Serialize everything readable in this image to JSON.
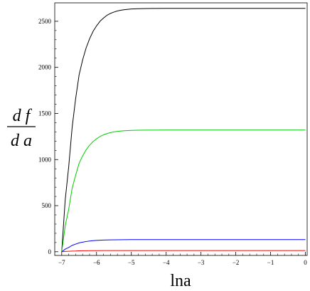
{
  "chart_data": {
    "type": "line",
    "title": "",
    "xlabel": "lna",
    "ylabel": {
      "numerator": "d f",
      "denominator": "d a"
    },
    "xlim": [
      -7.2,
      0.05
    ],
    "ylim": [
      -40,
      2700
    ],
    "xticks": [
      -7,
      -6,
      -5,
      -4,
      -3,
      -2,
      -1,
      0
    ],
    "yticks": [
      0,
      500,
      1000,
      1500,
      2000,
      2500
    ],
    "grid": false,
    "legend": "none",
    "series": [
      {
        "color": "#000000",
        "x": [
          -7.0,
          -6.9,
          -6.8,
          -6.7,
          -6.6,
          -6.5,
          -6.4,
          -6.3,
          -6.2,
          -6.1,
          -6.0,
          -5.9,
          -5.8,
          -5.7,
          -5.6,
          -5.5,
          -5.4,
          -5.3,
          -5.2,
          -5.1,
          -5.0,
          -4.8,
          -4.6,
          -4.4,
          -4.0,
          -3.0,
          -2.0,
          -1.0,
          0.0
        ],
        "values": [
          0,
          560,
          920,
          1350,
          1660,
          1920,
          2080,
          2210,
          2310,
          2390,
          2450,
          2500,
          2535,
          2565,
          2585,
          2600,
          2612,
          2620,
          2626,
          2630,
          2633,
          2636,
          2638,
          2639,
          2640,
          2640,
          2640,
          2640,
          2640
        ]
      },
      {
        "color": "#00cc00",
        "x": [
          -7.0,
          -6.9,
          -6.8,
          -6.7,
          -6.6,
          -6.5,
          -6.4,
          -6.3,
          -6.2,
          -6.1,
          -6.0,
          -5.9,
          -5.8,
          -5.7,
          -5.6,
          -5.5,
          -5.4,
          -5.3,
          -5.2,
          -5.1,
          -5.0,
          -4.8,
          -4.6,
          -4.4,
          -4.0,
          -3.0,
          -2.0,
          -1.0,
          0.0
        ],
        "values": [
          0,
          280,
          460,
          690,
          830,
          960,
          1040,
          1105,
          1155,
          1195,
          1225,
          1250,
          1268,
          1282,
          1292,
          1300,
          1306,
          1310,
          1313,
          1315,
          1316,
          1318,
          1319,
          1319,
          1320,
          1320,
          1320,
          1320,
          1320
        ]
      },
      {
        "color": "#0000ff",
        "x": [
          -7.0,
          -6.9,
          -6.8,
          -6.7,
          -6.6,
          -6.5,
          -6.4,
          -6.3,
          -6.2,
          -6.1,
          -6.0,
          -5.8,
          -5.6,
          -5.4,
          -5.2,
          -5.0,
          -4.5,
          -4.0,
          -3.0,
          -2.0,
          -1.0,
          0.0
        ],
        "values": [
          0,
          28,
          46,
          69,
          83,
          96,
          104,
          111,
          116,
          120,
          123,
          127,
          129,
          130,
          131,
          132,
          132,
          132,
          132,
          132,
          132,
          132
        ]
      },
      {
        "color": "#ff0000",
        "x": [
          -7.0,
          -6.9,
          -6.8,
          -6.7,
          -6.6,
          -6.5,
          -6.4,
          -6.3,
          -6.2,
          -6.0,
          -5.8,
          -5.5,
          -5.0,
          -4.0,
          -3.0,
          -2.0,
          -1.0,
          0.0
        ],
        "values": [
          0,
          3,
          5,
          7,
          8,
          10,
          11,
          11.5,
          12,
          12.5,
          13,
          13.2,
          13.3,
          13.3,
          13.3,
          13.3,
          13.3,
          13.3
        ]
      }
    ]
  }
}
